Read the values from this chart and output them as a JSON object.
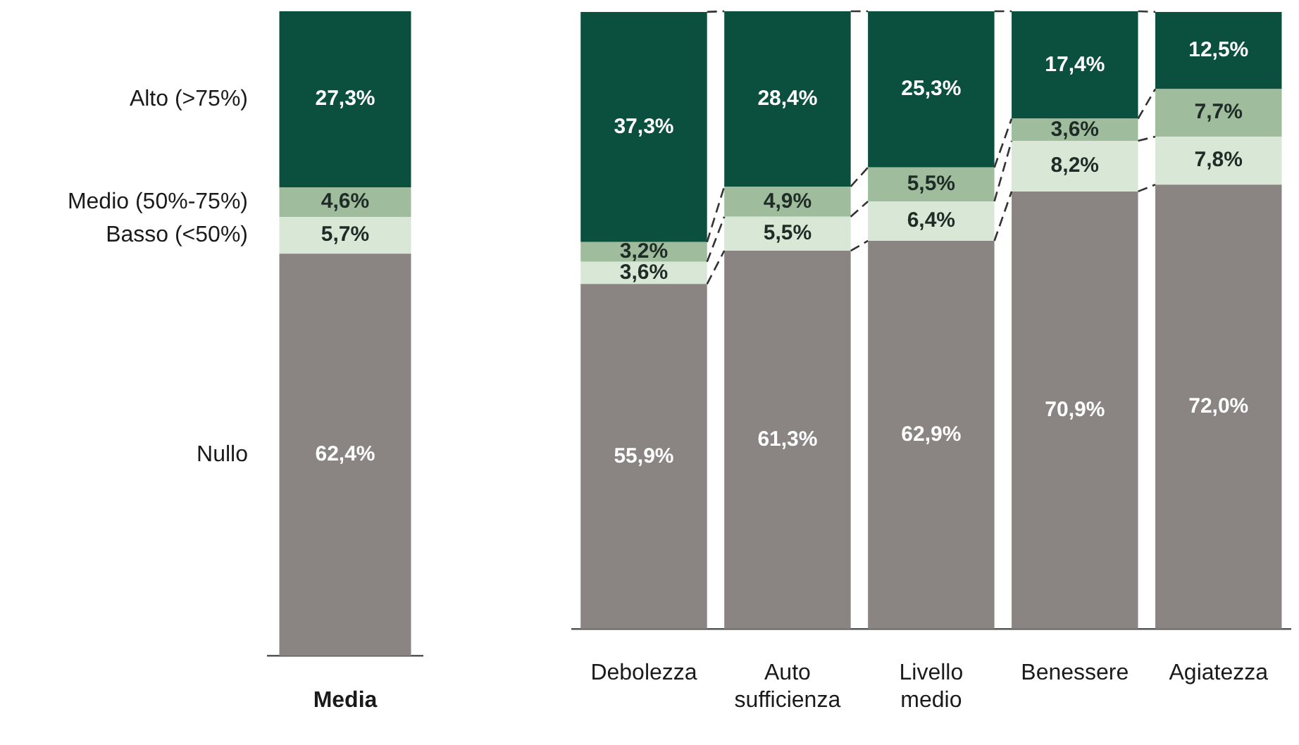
{
  "chart_data": [
    {
      "type": "bar",
      "stacked": true,
      "legend": false,
      "grid": false,
      "categories": [
        "Media"
      ],
      "series": [
        {
          "name": "Nullo",
          "color": "#8a8482",
          "values": [
            62.4
          ],
          "value_labels": [
            "62,4%"
          ]
        },
        {
          "name": "Basso (<50%)",
          "color": "#d8e7d6",
          "values": [
            5.7
          ],
          "value_labels": [
            "5,7%"
          ]
        },
        {
          "name": "Medio (50%-75%)",
          "color": "#9fbd9c",
          "values": [
            4.6
          ],
          "value_labels": [
            "4,6%"
          ]
        },
        {
          "name": "Alto (>75%)",
          "color": "#0b4f3f",
          "values": [
            27.3
          ],
          "value_labels": [
            "27,3%"
          ]
        }
      ]
    },
    {
      "type": "bar",
      "stacked": true,
      "legend": false,
      "grid": false,
      "categories": [
        "Debolezza",
        "Auto sufficienza",
        "Livello medio",
        "Benessere",
        "Agiatezza"
      ],
      "series": [
        {
          "color": "#8a8482",
          "values": [
            55.9,
            61.3,
            62.9,
            70.9,
            72.0
          ],
          "value_labels": [
            "55,9%",
            "61,3%",
            "62,9%",
            "70,9%",
            "72,0%"
          ]
        },
        {
          "color": "#d8e7d6",
          "values": [
            3.6,
            5.5,
            6.4,
            8.2,
            7.8
          ],
          "value_labels": [
            "3,6%",
            "5,5%",
            "6,4%",
            "8,2%",
            "7,8%"
          ]
        },
        {
          "color": "#9fbd9c",
          "values": [
            3.2,
            4.9,
            5.5,
            3.6,
            7.7
          ],
          "value_labels": [
            "3,2%",
            "4,9%",
            "5,5%",
            "3,6%",
            "7,7%"
          ]
        },
        {
          "color": "#0b4f3f",
          "values": [
            37.3,
            28.4,
            25.3,
            17.4,
            12.5
          ],
          "value_labels": [
            "37,3%",
            "28,4%",
            "25,3%",
            "17,4%",
            "12,5%"
          ]
        }
      ]
    }
  ]
}
